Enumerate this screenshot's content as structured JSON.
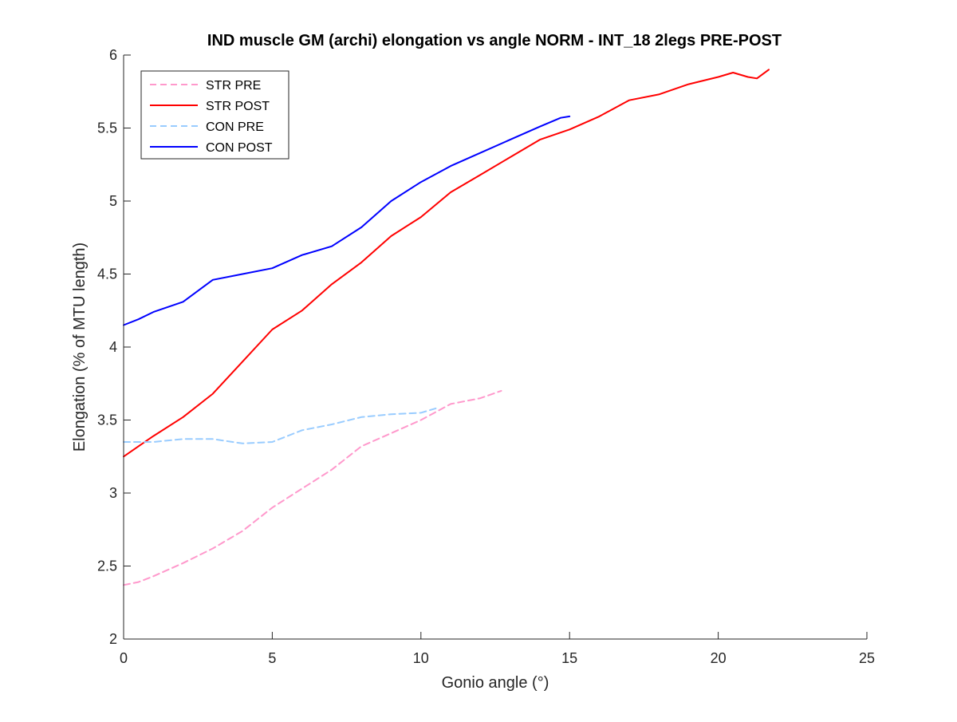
{
  "chart_data": {
    "type": "line",
    "title": "IND muscle GM (archi) elongation vs angle NORM - INT_18 2legs PRE-POST",
    "xlabel": "Gonio angle (°)",
    "ylabel": "Elongation (% of MTU length)",
    "xlim": [
      0,
      25
    ],
    "ylim": [
      2,
      6
    ],
    "xticks": [
      0,
      5,
      10,
      15,
      20,
      25
    ],
    "yticks": [
      2,
      2.5,
      3,
      3.5,
      4,
      4.5,
      5,
      5.5,
      6
    ],
    "xtick_labels": [
      "0",
      "5",
      "10",
      "15",
      "20",
      "25"
    ],
    "ytick_labels": [
      "2",
      "2.5",
      "3",
      "3.5",
      "4",
      "4.5",
      "5",
      "5.5",
      "6"
    ],
    "grid": false,
    "box": "open",
    "legend_position": "top-left",
    "series": [
      {
        "name": "STR PRE",
        "color": "#ff99cc",
        "style": "dashed",
        "points": [
          [
            0,
            2.37
          ],
          [
            0.5,
            2.39
          ],
          [
            1,
            2.43
          ],
          [
            2,
            2.52
          ],
          [
            3,
            2.62
          ],
          [
            4,
            2.74
          ],
          [
            5,
            2.9
          ],
          [
            6,
            3.03
          ],
          [
            7,
            3.16
          ],
          [
            8,
            3.32
          ],
          [
            9,
            3.41
          ],
          [
            10,
            3.5
          ],
          [
            11,
            3.61
          ],
          [
            12,
            3.65
          ],
          [
            12.7,
            3.7
          ]
        ]
      },
      {
        "name": "STR POST",
        "color": "#ff0000",
        "style": "solid",
        "points": [
          [
            0,
            3.25
          ],
          [
            0.5,
            3.32
          ],
          [
            1,
            3.39
          ],
          [
            2,
            3.52
          ],
          [
            3,
            3.68
          ],
          [
            4,
            3.9
          ],
          [
            5,
            4.12
          ],
          [
            6,
            4.25
          ],
          [
            7,
            4.43
          ],
          [
            8,
            4.58
          ],
          [
            9,
            4.76
          ],
          [
            10,
            4.89
          ],
          [
            11,
            5.06
          ],
          [
            12,
            5.18
          ],
          [
            13,
            5.3
          ],
          [
            14,
            5.42
          ],
          [
            15,
            5.49
          ],
          [
            16,
            5.58
          ],
          [
            17,
            5.69
          ],
          [
            18,
            5.73
          ],
          [
            19,
            5.8
          ],
          [
            20,
            5.85
          ],
          [
            20.5,
            5.88
          ],
          [
            21,
            5.85
          ],
          [
            21.3,
            5.84
          ],
          [
            21.7,
            5.9
          ]
        ]
      },
      {
        "name": "CON PRE",
        "color": "#99ccff",
        "style": "dashed",
        "points": [
          [
            0,
            3.35
          ],
          [
            1,
            3.35
          ],
          [
            2,
            3.37
          ],
          [
            3,
            3.37
          ],
          [
            4,
            3.34
          ],
          [
            5,
            3.35
          ],
          [
            6,
            3.43
          ],
          [
            7,
            3.47
          ],
          [
            8,
            3.52
          ],
          [
            9,
            3.54
          ],
          [
            10,
            3.55
          ],
          [
            10.5,
            3.58
          ]
        ]
      },
      {
        "name": "CON POST",
        "color": "#0000ff",
        "style": "solid",
        "points": [
          [
            0,
            4.15
          ],
          [
            0.5,
            4.19
          ],
          [
            1,
            4.24
          ],
          [
            2,
            4.31
          ],
          [
            3,
            4.46
          ],
          [
            4,
            4.5
          ],
          [
            5,
            4.54
          ],
          [
            6,
            4.63
          ],
          [
            7,
            4.69
          ],
          [
            8,
            4.82
          ],
          [
            9,
            5.0
          ],
          [
            10,
            5.13
          ],
          [
            11,
            5.24
          ],
          [
            12,
            5.33
          ],
          [
            13,
            5.42
          ],
          [
            14,
            5.51
          ],
          [
            14.7,
            5.57
          ],
          [
            15,
            5.58
          ]
        ]
      }
    ]
  }
}
